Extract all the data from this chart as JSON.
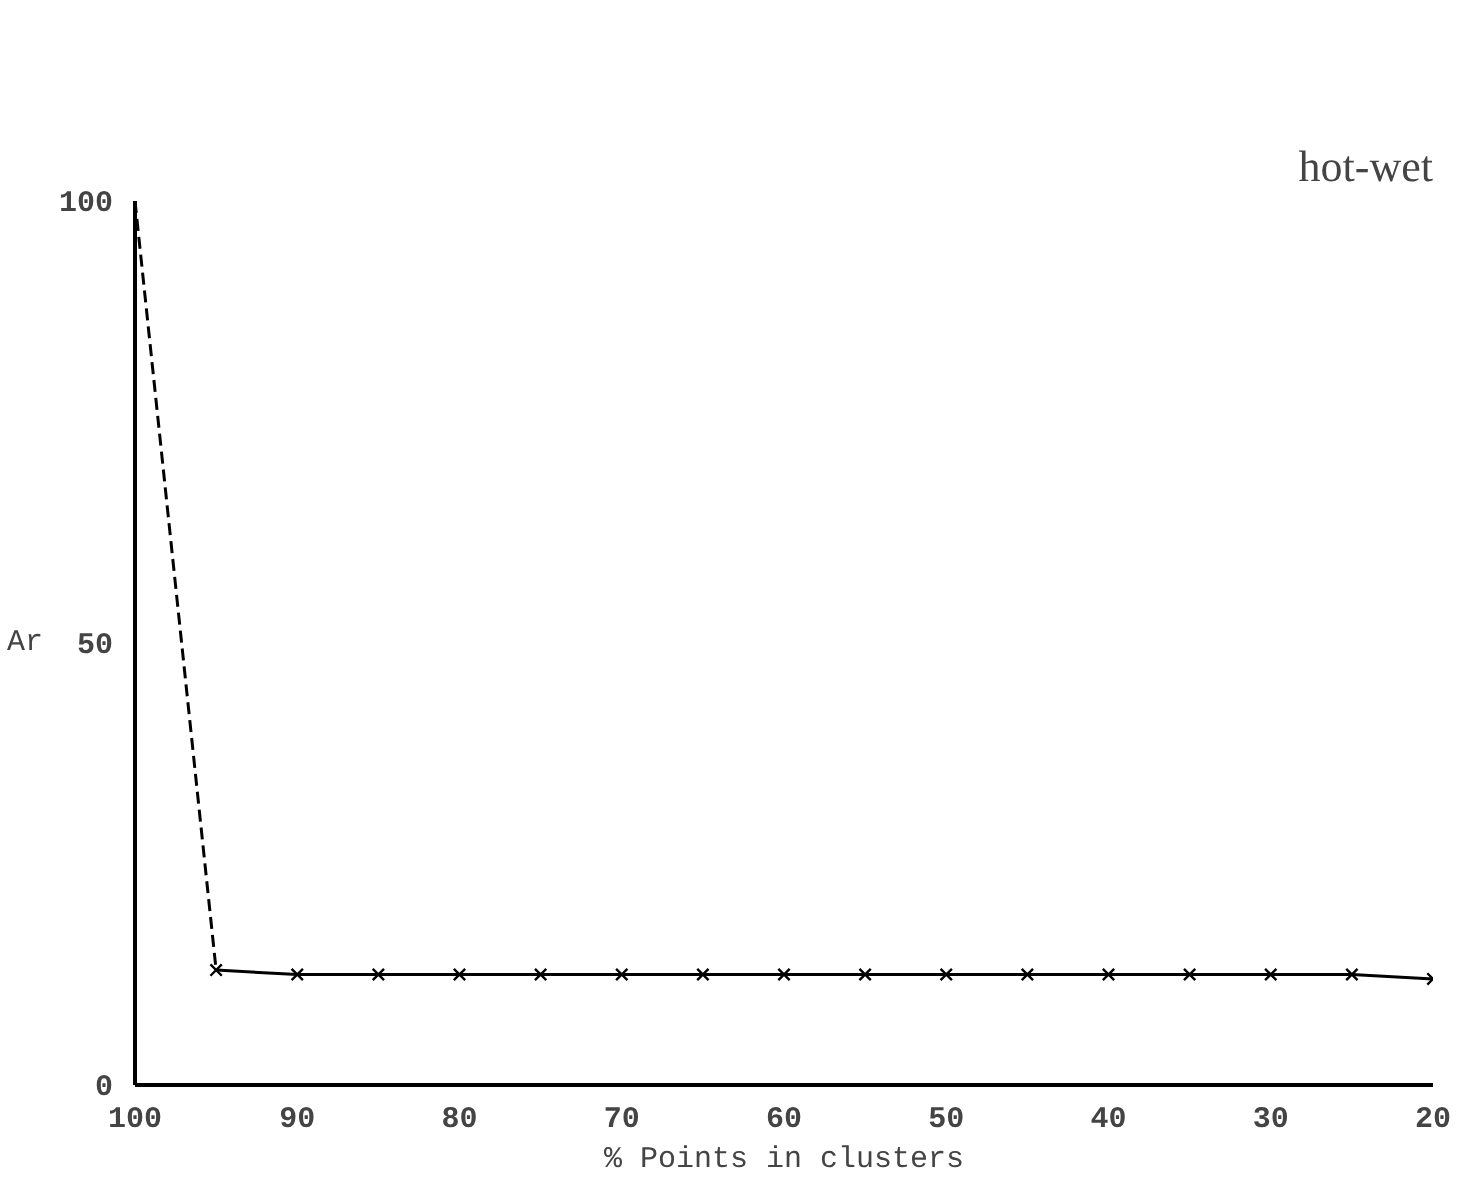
{
  "chart_data": {
    "type": "line",
    "title": "hot-wet",
    "xlabel": "% Points in clusters",
    "ylabel": "Ar",
    "xlim": [
      100,
      20
    ],
    "xticks": [
      100,
      90,
      80,
      70,
      60,
      50,
      40,
      30,
      20
    ],
    "ylim": [
      0,
      100
    ],
    "yticks": [
      0,
      50,
      100
    ],
    "grid": false,
    "series": [
      {
        "color": "#000000",
        "x": [
          100,
          95
        ],
        "values": [
          100,
          13
        ],
        "line_style": "dashed"
      },
      {
        "color": "#000000",
        "x": [
          95,
          90,
          85,
          80,
          75,
          70,
          65,
          60,
          55,
          50,
          45,
          40,
          35,
          30,
          25,
          20
        ],
        "values": [
          13,
          12.5,
          12.5,
          12.5,
          12.5,
          12.5,
          12.5,
          12.5,
          12.5,
          12.5,
          12.5,
          12.5,
          12.5,
          12.5,
          12.5,
          12
        ],
        "line_style": "solid",
        "marker": "cross"
      }
    ]
  }
}
